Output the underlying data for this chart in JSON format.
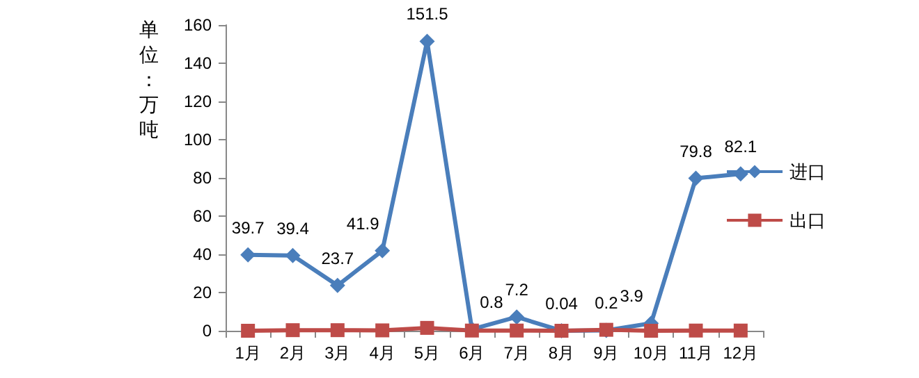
{
  "chart_data": {
    "type": "line",
    "ylabel": "单位：万吨",
    "categories": [
      "1月",
      "2月",
      "3月",
      "4月",
      "5月",
      "6月",
      "7月",
      "8月",
      "9月",
      "10月",
      "11月",
      "12月"
    ],
    "series": [
      {
        "name": "进口",
        "color": "#4a7ebb",
        "marker": "diamond",
        "values": [
          39.7,
          39.4,
          23.7,
          41.9,
          151.5,
          0.8,
          7.2,
          0.04,
          0.2,
          3.9,
          79.8,
          82.1
        ],
        "value_labels": [
          "39.7",
          "39.4",
          "23.7",
          "41.9",
          "151.5",
          "0.8",
          "7.2",
          "0.04",
          "0.2",
          "3.9",
          "79.8",
          "82.1"
        ]
      },
      {
        "name": "出口",
        "color": "#be4b48",
        "marker": "square",
        "values": [
          0,
          0.3,
          0.3,
          0.2,
          1.5,
          0.1,
          0.1,
          0,
          0.5,
          0,
          0.1,
          0.1
        ]
      }
    ],
    "ylim": [
      0,
      160
    ],
    "yticks": [
      0,
      20,
      40,
      60,
      80,
      100,
      120,
      140,
      160
    ],
    "grid": false,
    "legend": "right",
    "line_style": "solid"
  }
}
